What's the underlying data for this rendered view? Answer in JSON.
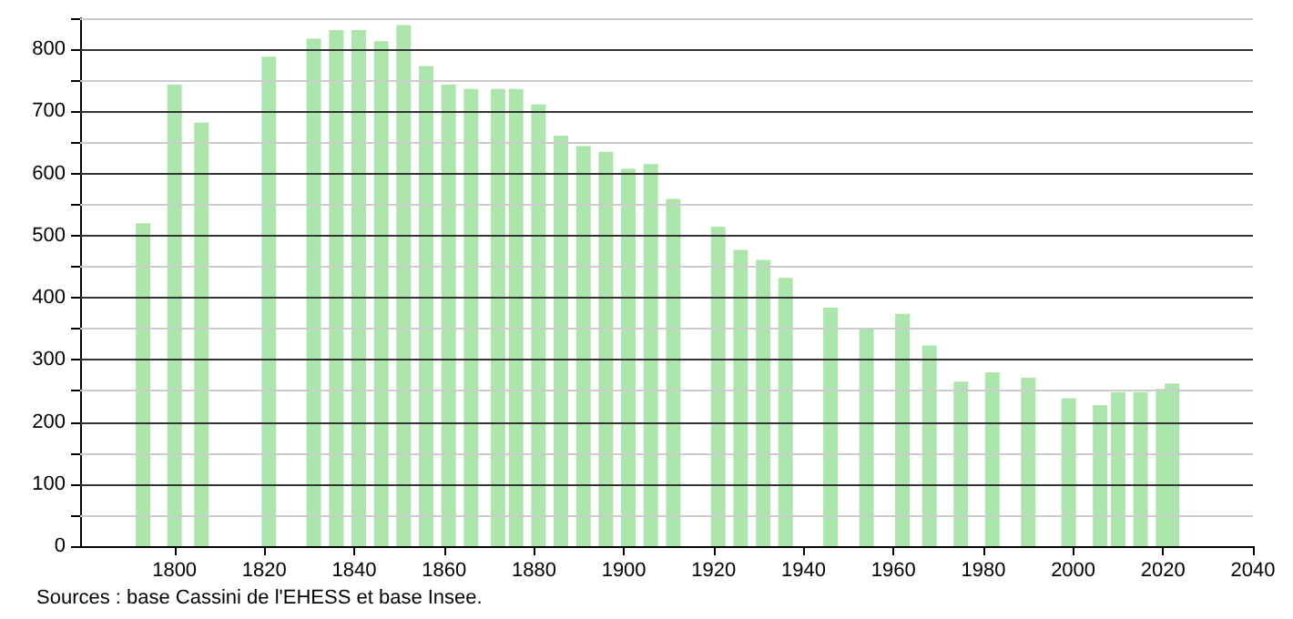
{
  "chart_data": {
    "type": "bar",
    "annotations": [
      "Sources : base Cassini de l'EHESS et base Insee."
    ],
    "x": [
      1793,
      1800,
      1806,
      1821,
      1831,
      1836,
      1841,
      1846,
      1851,
      1856,
      1861,
      1866,
      1872,
      1876,
      1881,
      1886,
      1891,
      1896,
      1901,
      1906,
      1911,
      1921,
      1926,
      1931,
      1936,
      1946,
      1954,
      1962,
      1968,
      1975,
      1982,
      1990,
      1999,
      2006,
      2010,
      2015,
      2020,
      2022
    ],
    "values": [
      520,
      743,
      682,
      788,
      817,
      831,
      831,
      813,
      839,
      773,
      743,
      736,
      736,
      736,
      711,
      661,
      644,
      635,
      608,
      615,
      559,
      514,
      477,
      461,
      432,
      384,
      349,
      374,
      323,
      265,
      280,
      271,
      238,
      227,
      248,
      248,
      253,
      262
    ],
    "color": "#ace6ac",
    "xlim": [
      1779,
      2040
    ],
    "xticks": [
      1800,
      1820,
      1840,
      1860,
      1880,
      1900,
      1920,
      1940,
      1960,
      1980,
      2000,
      2020,
      2040
    ],
    "ylim": [
      0,
      850
    ],
    "yticks": [
      0,
      {
        "value": 50,
        "label": null
      },
      100,
      {
        "value": 150,
        "label": null
      },
      200,
      {
        "value": 250,
        "label": null
      },
      300,
      {
        "value": 350,
        "label": null
      },
      400,
      {
        "value": 450,
        "label": null
      },
      500,
      {
        "value": 550,
        "label": null
      },
      600,
      {
        "value": 650,
        "label": null
      },
      700,
      {
        "value": 750,
        "label": null
      },
      800,
      {
        "value": 850,
        "label": null
      }
    ],
    "grid": "y"
  }
}
